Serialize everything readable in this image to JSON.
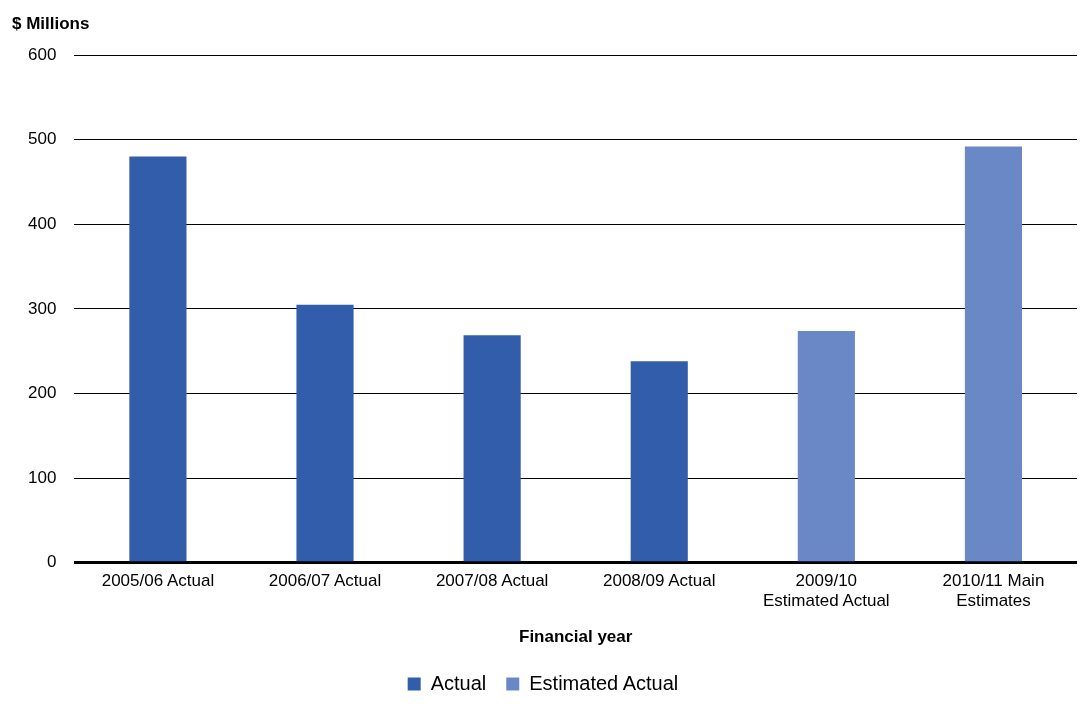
{
  "chart_data": {
    "type": "bar",
    "ylabel": "$ Millions",
    "xlabel": "Financial year",
    "categories": [
      "2005/06 Actual",
      "2006/07 Actual",
      "2007/08 Actual",
      "2008/09 Actual",
      "2009/10 Estimated Actual",
      "2010/11 Main Estimates"
    ],
    "series": [
      {
        "name": "Actual",
        "color": "#325dab",
        "values": [
          480,
          305,
          269,
          238,
          null,
          null
        ]
      },
      {
        "name": "Estimated Actual",
        "color": "#6a88c6",
        "values": [
          null,
          null,
          null,
          null,
          274,
          492
        ]
      }
    ],
    "ylim": [
      0,
      600
    ],
    "yticks": [
      0,
      100,
      200,
      300,
      400,
      500,
      600
    ],
    "grid": "y",
    "legend": "bottom"
  }
}
